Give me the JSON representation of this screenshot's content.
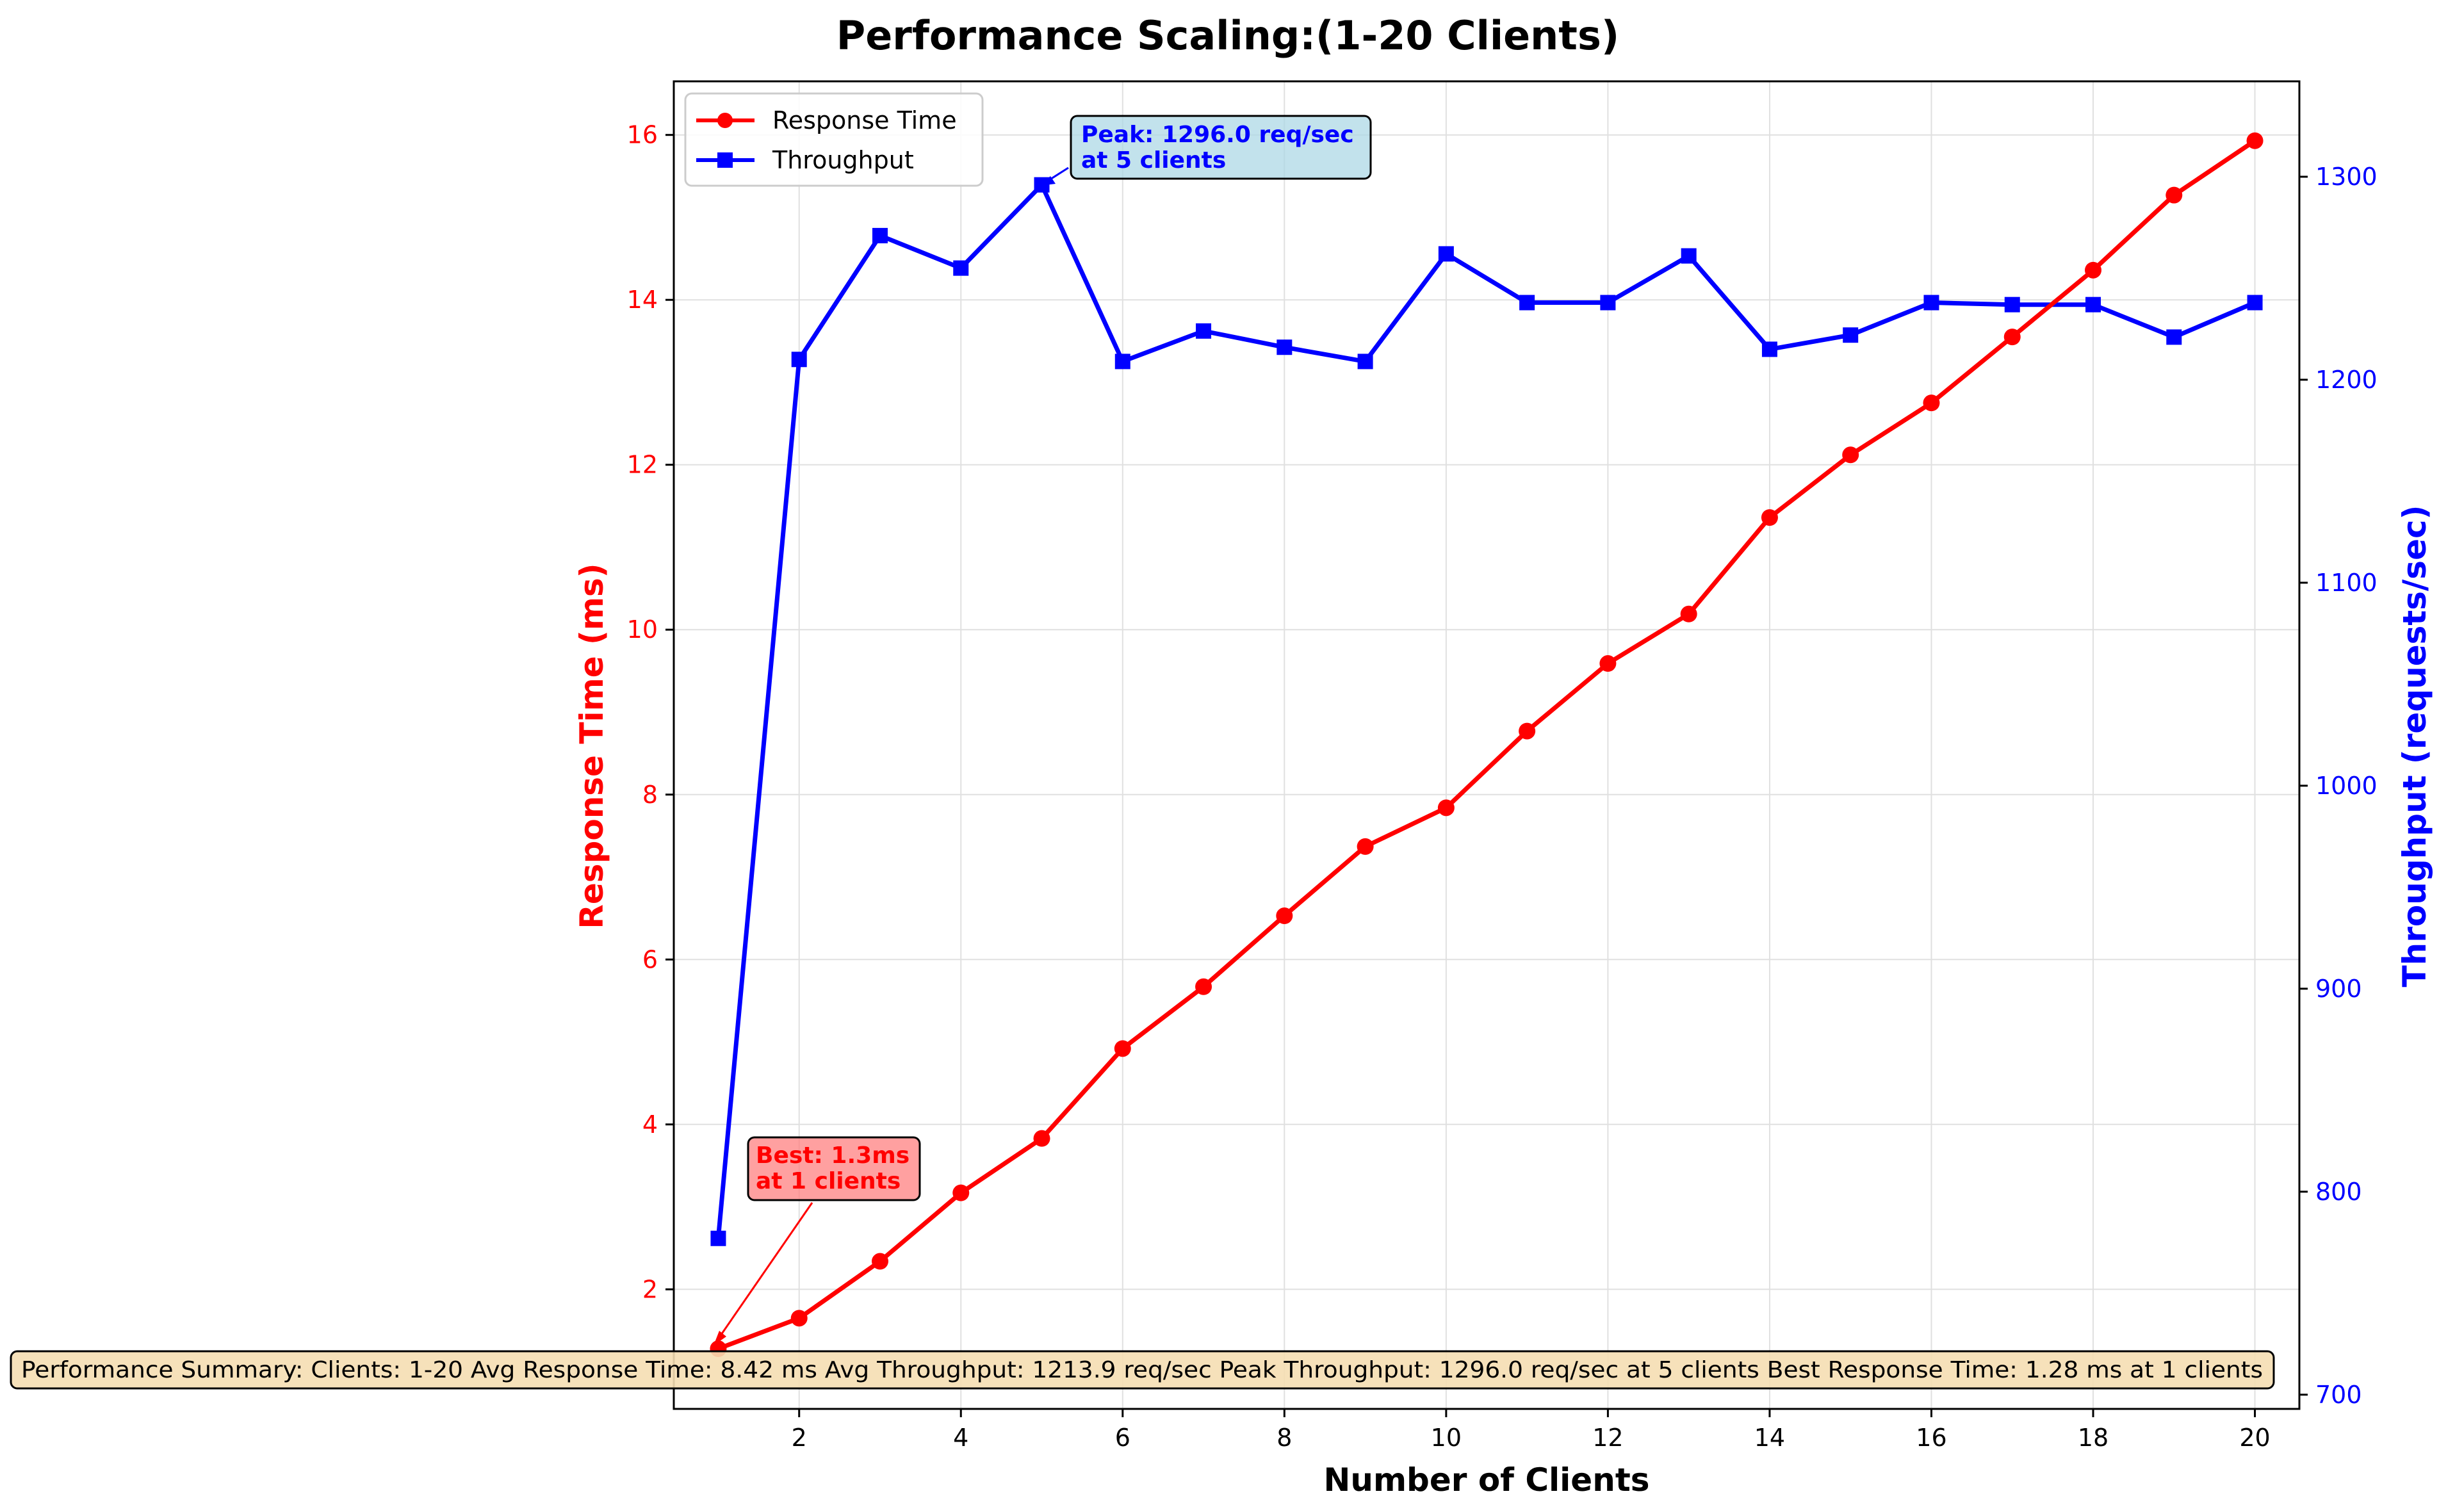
{
  "chart_data": {
    "type": "line",
    "title": "Performance Scaling:(1-20 Clients)",
    "xlabel": "Number of Clients",
    "ylabel_left": "Response Time (ms)",
    "ylabel_right": "Throughput (requests/sec)",
    "xlim": [
      0.45,
      20.55
    ],
    "ylim_left": [
      0.55,
      16.65
    ],
    "ylim_right": [
      693,
      1347
    ],
    "x_ticks": [
      2,
      4,
      6,
      8,
      10,
      12,
      14,
      16,
      18,
      20
    ],
    "y_left_ticks": [
      2,
      4,
      6,
      8,
      10,
      12,
      14,
      16
    ],
    "y_right_ticks": [
      700,
      800,
      900,
      1000,
      1100,
      1200,
      1300
    ],
    "grid": true,
    "legend_position": "top-left",
    "x": [
      1,
      2,
      3,
      4,
      5,
      6,
      7,
      8,
      9,
      10,
      11,
      12,
      13,
      14,
      15,
      16,
      17,
      18,
      19,
      20
    ],
    "series": [
      {
        "name": "Response Time",
        "axis": "left",
        "color": "#ff0000",
        "marker": "circle",
        "values": [
          1.28,
          1.65,
          2.34,
          3.17,
          3.83,
          4.92,
          5.67,
          6.53,
          7.37,
          7.84,
          8.77,
          9.59,
          10.19,
          11.36,
          12.12,
          12.75,
          13.55,
          14.36,
          15.27,
          15.93
        ]
      },
      {
        "name": "Throughput",
        "axis": "right",
        "color": "#0000ff",
        "marker": "square",
        "values": [
          777,
          1210,
          1271,
          1255,
          1296,
          1209,
          1224,
          1216,
          1209,
          1262,
          1238,
          1238,
          1261,
          1215,
          1222,
          1238,
          1237,
          1237,
          1221,
          1238
        ]
      }
    ],
    "annotations": {
      "peak": {
        "line1": "Peak: 1296.0 req/sec",
        "line2": "at 5 clients",
        "x": 5,
        "y": 1296,
        "axis": "right",
        "box_color": "#add8e6",
        "text_color": "#0000ff"
      },
      "best": {
        "line1": "Best: 1.3ms",
        "line2": "at 1 clients",
        "x": 1,
        "y": 1.28,
        "axis": "left",
        "box_color": "#ff8080",
        "text_color": "#ff0000"
      }
    },
    "summary": "Performance Summary: Clients: 1-20 Avg Response Time: 8.42 ms Avg Throughput: 1213.9 req/sec Peak Throughput: 1296.0 req/sec at 5 clients Best Response Time: 1.28 ms at 1 clients",
    "summary_box_color": "#f5deb3"
  }
}
